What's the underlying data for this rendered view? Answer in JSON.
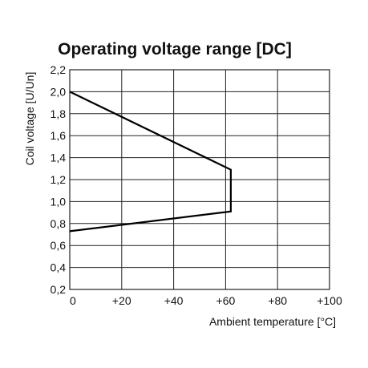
{
  "chart_data": {
    "type": "line",
    "title": "Operating voltage range [DC]",
    "xlabel": "Ambient temperature [°C]",
    "ylabel": "Coil voltage [U/Un]",
    "xlim": [
      0,
      100
    ],
    "ylim": [
      0.2,
      2.2
    ],
    "x_ticks": [
      0,
      20,
      40,
      60,
      80,
      100
    ],
    "x_tick_labels": [
      "0",
      "+20",
      "+40",
      "+60",
      "+80",
      "+100"
    ],
    "y_ticks": [
      0.2,
      0.4,
      0.6,
      0.8,
      1.0,
      1.2,
      1.4,
      1.6,
      1.8,
      2.0,
      2.2
    ],
    "y_tick_labels": [
      "0,2",
      "0,4",
      "0,6",
      "0,8",
      "1,0",
      "1,2",
      "1,4",
      "1,6",
      "1,8",
      "2,0",
      "2,2"
    ],
    "grid": true,
    "series": [
      {
        "x": [
          0,
          62,
          62,
          0
        ],
        "y": [
          2.0,
          1.29,
          0.91,
          0.73
        ]
      }
    ]
  }
}
